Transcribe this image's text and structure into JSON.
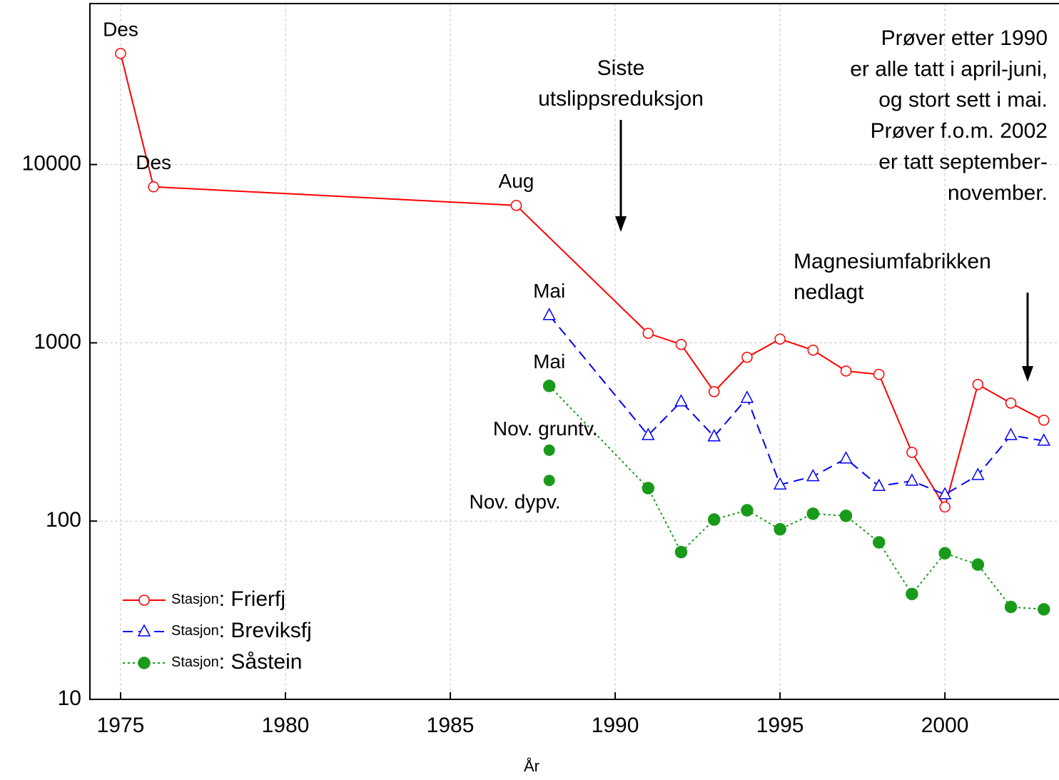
{
  "chart_data": {
    "type": "line",
    "x_label": "År",
    "log_y": true,
    "grid": true,
    "xlim": [
      1974.07,
      2003.46
    ],
    "ylim": [
      10,
      80000
    ],
    "xticks": [
      1975,
      1980,
      1985,
      1990,
      1995,
      2000
    ],
    "yticks": [
      10,
      100,
      1000,
      10000
    ],
    "series": [
      {
        "name": "Stasjon: Frierfj",
        "color": "#ff0000",
        "marker": "open-circle",
        "line": "solid",
        "x": [
          1975,
          1976,
          1987,
          1991,
          1992,
          1993,
          1994,
          1995,
          1996,
          1997,
          1998,
          1999,
          2000,
          2001,
          2002,
          2003
        ],
        "values": [
          42000,
          7500,
          5900,
          1130,
          980,
          532,
          830,
          1050,
          910,
          695,
          665,
          243,
          120,
          584,
          459,
          368
        ],
        "labels": [
          "Des",
          "Des",
          "Aug",
          null,
          null,
          null,
          null,
          null,
          null,
          null,
          null,
          null,
          null,
          null,
          null,
          null
        ]
      },
      {
        "name": "Stasjon: Breviksfj",
        "color": "#0000ff",
        "marker": "open-triangle",
        "line": "dashed",
        "x": [
          1988,
          1991,
          1992,
          1993,
          1994,
          1995,
          1996,
          1997,
          1998,
          1999,
          2000,
          2001,
          2002,
          2003
        ],
        "values": [
          1428,
          303,
          468,
          298,
          490,
          160,
          178,
          224,
          157,
          168,
          141,
          181,
          303,
          282
        ],
        "labels": [
          "Mai",
          null,
          null,
          null,
          null,
          null,
          null,
          null,
          null,
          null,
          null,
          null,
          null,
          null
        ]
      },
      {
        "name": "Stasjon: Såstein",
        "color": "#1a9a1a",
        "marker": "filled-circle",
        "line": "dotted",
        "x": [
          1988,
          1991,
          1992,
          1993,
          1994,
          1995,
          1996,
          1997,
          1998,
          1999,
          2000,
          2001,
          2002,
          2003
        ],
        "values": [
          573,
          153,
          67,
          102,
          115,
          90,
          110,
          107,
          76,
          39,
          66,
          57,
          33,
          32
        ],
        "labels": [
          "Mai",
          null,
          null,
          null,
          null,
          null,
          null,
          null,
          null,
          null,
          null,
          null,
          null,
          null
        ]
      }
    ],
    "extra_points": [
      {
        "label": "Nov. gruntv.",
        "x": 1988,
        "value": 250
      },
      {
        "label": "Nov. dypv.",
        "x": 1988,
        "value": 169
      }
    ],
    "annotations": [
      {
        "lines": [
          "Siste",
          "utslippsreduksjon"
        ]
      },
      {
        "lines": [
          "Magnesiumfabrikken",
          "nedlagt"
        ]
      }
    ],
    "note": [
      "Prøver etter 1990",
      "er alle tatt i april-juni,",
      "og stort sett i mai.",
      "Prøver f.o.m. 2002",
      "er tatt september-",
      "november."
    ]
  }
}
